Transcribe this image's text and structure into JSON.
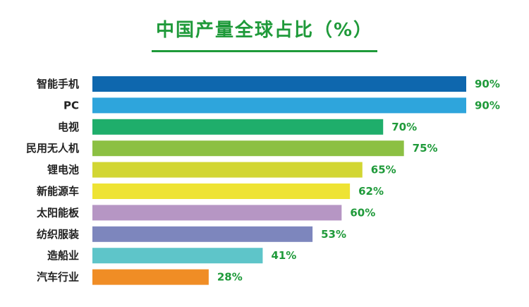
{
  "chart_data": {
    "type": "bar",
    "orientation": "horizontal",
    "title": "中国产量全球占比（%）",
    "categories": [
      "智能手机",
      "PC",
      "电视",
      "民用无人机",
      "锂电池",
      "新能源车",
      "太阳能板",
      "纺织服装",
      "造船业",
      "汽车行业"
    ],
    "values": [
      90,
      90,
      70,
      75,
      65,
      62,
      60,
      53,
      41,
      28
    ],
    "value_labels": [
      "90%",
      "90%",
      "70%",
      "75%",
      "65%",
      "62%",
      "60%",
      "53%",
      "41%",
      "28%"
    ],
    "colors": [
      "#0e67ae",
      "#2ea5dc",
      "#1fae6b",
      "#8cc043",
      "#d2d633",
      "#eee334",
      "#b696c4",
      "#7d86bd",
      "#5ec5c9",
      "#f08d25"
    ],
    "xlim": [
      0,
      100
    ],
    "title_color": "#1f9a3a",
    "label_color": "#1f9a3a",
    "grid": false,
    "legend": "none"
  }
}
